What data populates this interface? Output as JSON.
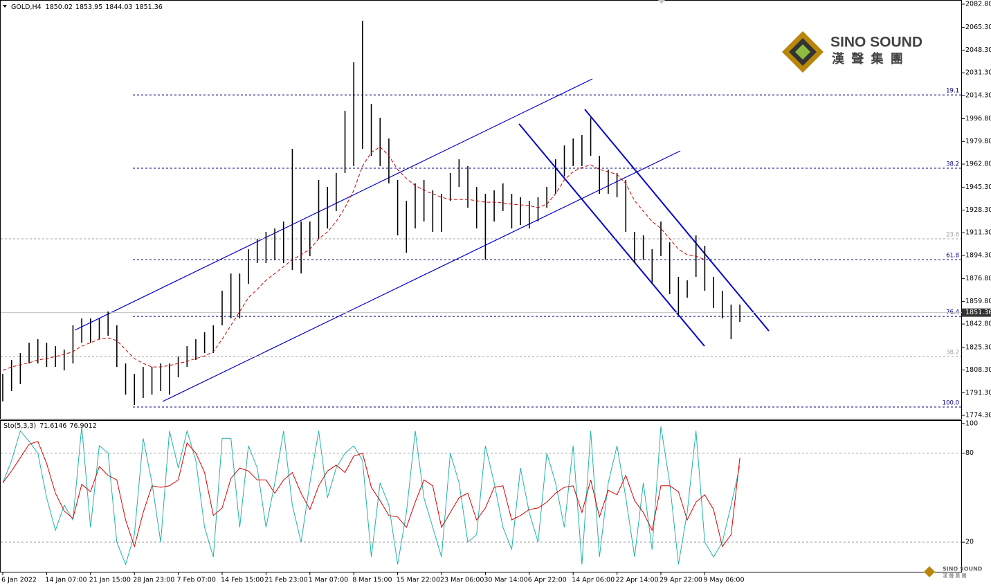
{
  "chart_data": [
    {
      "type": "ohlc",
      "header": {
        "symbol": "GOLD,H4",
        "open": 1850.02,
        "high": 1853.95,
        "low": 1844.03,
        "close": 1851.36
      },
      "categories": [
        "6 Jan 2022",
        null,
        null,
        null,
        null,
        "14 Jan 07:00",
        null,
        null,
        null,
        null,
        "21 Jan 15:00",
        null,
        null,
        null,
        null,
        "28 Jan 23:00",
        null,
        null,
        null,
        null,
        "7 Feb 07:00",
        null,
        null,
        null,
        null,
        "14 Feb 15:00",
        null,
        null,
        null,
        null,
        "21 Feb 23:00",
        null,
        null,
        null,
        null,
        "1 Mar 07:00",
        null,
        null,
        null,
        null,
        "8 Mar 15:00",
        null,
        null,
        null,
        null,
        "15 Mar 22:00",
        null,
        null,
        null,
        null,
        "23 Mar 06:00",
        null,
        null,
        null,
        null,
        "30 Mar 14:00",
        null,
        null,
        null,
        null,
        "6 Apr 22:00",
        null,
        null,
        null,
        null,
        "14 Apr 06:00",
        null,
        null,
        null,
        null,
        "22 Apr 14:00",
        null,
        null,
        null,
        null,
        "29 Apr 22:00",
        null,
        null,
        null,
        null,
        "9 May 06:00",
        null,
        null,
        null,
        null
      ],
      "color": "#000000",
      "high": [
        1805.4,
        1815.8,
        1821.0,
        1828.8,
        1831.4,
        1828.8,
        1826.2,
        1823.6,
        1841.8,
        1847.0,
        1847.0,
        1847.0,
        1852.2,
        1841.8,
        1813.2,
        1805.4,
        1810.6,
        1810.6,
        1813.2,
        1813.2,
        1818.4,
        1826.2,
        1831.4,
        1836.6,
        1841.8,
        1867.8,
        1880.7,
        1880.7,
        1898.9,
        1906.7,
        1911.9,
        1914.5,
        1919.7,
        1974.2,
        1919.7,
        1919.7,
        1950.9,
        1945.7,
        1956.1,
        2002.8,
        2039.2,
        2070.3,
        2008.0,
        1997.6,
        1982.0,
        1950.9,
        1935.3,
        1948.3,
        1950.9,
        1943.1,
        1940.5,
        1956.1,
        1966.4,
        1961.3,
        1945.7,
        1940.5,
        1943.1,
        1948.3,
        1940.5,
        1937.9,
        1935.3,
        1937.9,
        1945.7,
        1966.4,
        1976.8,
        1982.0,
        1984.6,
        1997.6,
        1969.0,
        1958.7,
        1956.1,
        1950.9,
        1911.9,
        1909.3,
        1898.9,
        1919.7,
        1904.1,
        1878.2,
        1875.6,
        1909.3,
        1901.5,
        1878.2,
        1867.8,
        1857.4,
        1857.4
      ],
      "low": [
        1784.7,
        1792.5,
        1797.7,
        1813.2,
        1813.2,
        1810.6,
        1810.6,
        1808.0,
        1813.2,
        1828.8,
        1828.8,
        1831.4,
        1834.0,
        1810.6,
        1789.9,
        1782.1,
        1787.3,
        1789.9,
        1792.5,
        1789.9,
        1802.8,
        1810.6,
        1815.8,
        1821.0,
        1821.0,
        1841.8,
        1847.0,
        1847.0,
        1873.0,
        1888.5,
        1888.5,
        1891.1,
        1888.5,
        1883.3,
        1880.7,
        1893.7,
        1906.7,
        1914.5,
        1927.5,
        1956.1,
        1961.3,
        1974.2,
        1969.0,
        1961.3,
        1948.3,
        1909.3,
        1896.3,
        1914.5,
        1919.7,
        1911.9,
        1911.9,
        1935.3,
        1945.7,
        1930.1,
        1914.5,
        1891.1,
        1919.7,
        1927.5,
        1914.5,
        1917.1,
        1914.5,
        1919.7,
        1930.1,
        1940.5,
        1953.5,
        1961.3,
        1961.3,
        1969.0,
        1940.5,
        1940.5,
        1937.9,
        1911.9,
        1888.5,
        1891.1,
        1873.0,
        1893.7,
        1865.2,
        1849.6,
        1862.6,
        1878.2,
        1867.8,
        1854.8,
        1847.0,
        1831.4,
        1844.4
      ],
      "ma": {
        "color": "#cc0000",
        "values": [
          1808.0,
          1810.6,
          1812.2,
          1813.7,
          1815.8,
          1816.9,
          1818.4,
          1820.0,
          1822.1,
          1826.2,
          1828.8,
          1831.4,
          1832.4,
          1830.4,
          1823.6,
          1816.9,
          1813.2,
          1810.6,
          1810.6,
          1811.7,
          1813.2,
          1814.8,
          1816.9,
          1818.9,
          1822.1,
          1831.4,
          1841.8,
          1852.2,
          1862.6,
          1868.8,
          1875.6,
          1880.7,
          1885.9,
          1891.1,
          1894.8,
          1898.9,
          1906.7,
          1911.9,
          1919.7,
          1930.1,
          1943.1,
          1961.3,
          1971.6,
          1975.8,
          1969.0,
          1958.7,
          1951.9,
          1946.7,
          1943.1,
          1940.5,
          1937.9,
          1936.3,
          1936.3,
          1936.3,
          1935.3,
          1934.2,
          1934.2,
          1933.7,
          1932.7,
          1932.2,
          1931.6,
          1930.1,
          1932.7,
          1940.5,
          1950.9,
          1957.1,
          1960.2,
          1962.3,
          1958.7,
          1957.1,
          1955.0,
          1948.3,
          1935.3,
          1927.5,
          1919.7,
          1914.5,
          1906.7,
          1898.9,
          1894.8,
          1893.7,
          1891.1,
          null,
          null,
          null,
          null
        ]
      },
      "fib_sets": [
        {
          "color": "#00007f",
          "levels": [
            {
              "value": 2014.7,
              "label": "19.1"
            },
            {
              "value": 1959.7,
              "label": "38.2"
            },
            {
              "value": 1891.1,
              "label": "61.8"
            },
            {
              "value": 1848.5,
              "label": "76.4"
            },
            {
              "value": 1780.5,
              "label": "100.0"
            }
          ]
        },
        {
          "color": "#a0a0a0",
          "levels": [
            {
              "value": 1906.7,
              "label": "23.6"
            },
            {
              "value": 1818.4,
              "label": "38.2"
            }
          ]
        }
      ],
      "ylim": [
        1771.7,
        2085.9
      ],
      "yticks": [
        {
          "value": 2082.8,
          "label": "2082.80"
        },
        {
          "value": 2065.3,
          "label": "2065.30"
        },
        {
          "value": 2048.3,
          "label": "2048.30"
        },
        {
          "value": 2031.3,
          "label": "2031.30"
        },
        {
          "value": 2014.3,
          "label": "2014.30"
        },
        {
          "value": 1996.8,
          "label": "1996.80"
        },
        {
          "value": 1979.8,
          "label": "1979.80"
        },
        {
          "value": 1962.8,
          "label": "1962.80"
        },
        {
          "value": 1945.3,
          "label": "1945.30"
        },
        {
          "value": 1928.3,
          "label": "1928.30"
        },
        {
          "value": 1911.3,
          "label": "1911.30"
        },
        {
          "value": 1894.3,
          "label": "1894.30"
        },
        {
          "value": 1876.8,
          "label": "1876.80"
        },
        {
          "value": 1859.8,
          "label": "1859.80"
        },
        {
          "value": 1842.8,
          "label": "1842.80"
        },
        {
          "value": 1825.3,
          "label": "1825.30"
        },
        {
          "value": 1808.3,
          "label": "1808.30"
        },
        {
          "value": 1791.3,
          "label": "1791.30"
        },
        {
          "value": 1774.3,
          "label": "1774.30"
        }
      ]
    },
    {
      "type": "line",
      "header": {
        "name": "Sto(5,3,3)",
        "main": 71.6146,
        "signal": 76.9012
      },
      "series": [
        {
          "color": "#20b2aa",
          "values": [
            60,
            75,
            95,
            88,
            80,
            50,
            28,
            45,
            35,
            98,
            30,
            85,
            80,
            20,
            5,
            25,
            90,
            60,
            20,
            95,
            70,
            95,
            75,
            30,
            10,
            90,
            90,
            30,
            85,
            70,
            30,
            60,
            95,
            45,
            20,
            60,
            95,
            50,
            70,
            80,
            85,
            75,
            10,
            60,
            45,
            5,
            40,
            95,
            50,
            30,
            10,
            80,
            60,
            20,
            25,
            85,
            60,
            30,
            15,
            70,
            40,
            20,
            80,
            60,
            30,
            85,
            5,
            95,
            10,
            60,
            85,
            50,
            10,
            60,
            15,
            98,
            60,
            5,
            40,
            95,
            20,
            10,
            20,
            45,
            71.6
          ]
        },
        {
          "color": "#dd0000",
          "values": [
            60,
            68,
            77,
            86,
            88,
            73,
            53,
            41,
            36,
            59,
            54,
            71,
            65,
            62,
            35,
            17,
            40,
            58,
            57,
            58,
            62,
            87,
            80,
            67,
            38,
            43,
            63,
            70,
            68,
            62,
            62,
            53,
            62,
            67,
            53,
            42,
            58,
            68,
            72,
            67,
            78,
            80,
            57,
            48,
            38,
            37,
            30,
            47,
            62,
            58,
            30,
            40,
            50,
            53,
            35,
            43,
            57,
            58,
            35,
            38,
            42,
            43,
            47,
            53,
            57,
            58,
            40,
            62,
            37,
            55,
            52,
            65,
            48,
            40,
            28,
            58,
            58,
            54,
            35,
            47,
            52,
            42,
            17,
            25,
            76.9
          ]
        }
      ],
      "levels": [
        80,
        20
      ],
      "ylim": [
        0,
        102.3
      ],
      "yticks": [
        100,
        80,
        20
      ]
    }
  ],
  "logo": {
    "name": "SINO SOUND",
    "chinese": "漢 聲 集 團"
  }
}
